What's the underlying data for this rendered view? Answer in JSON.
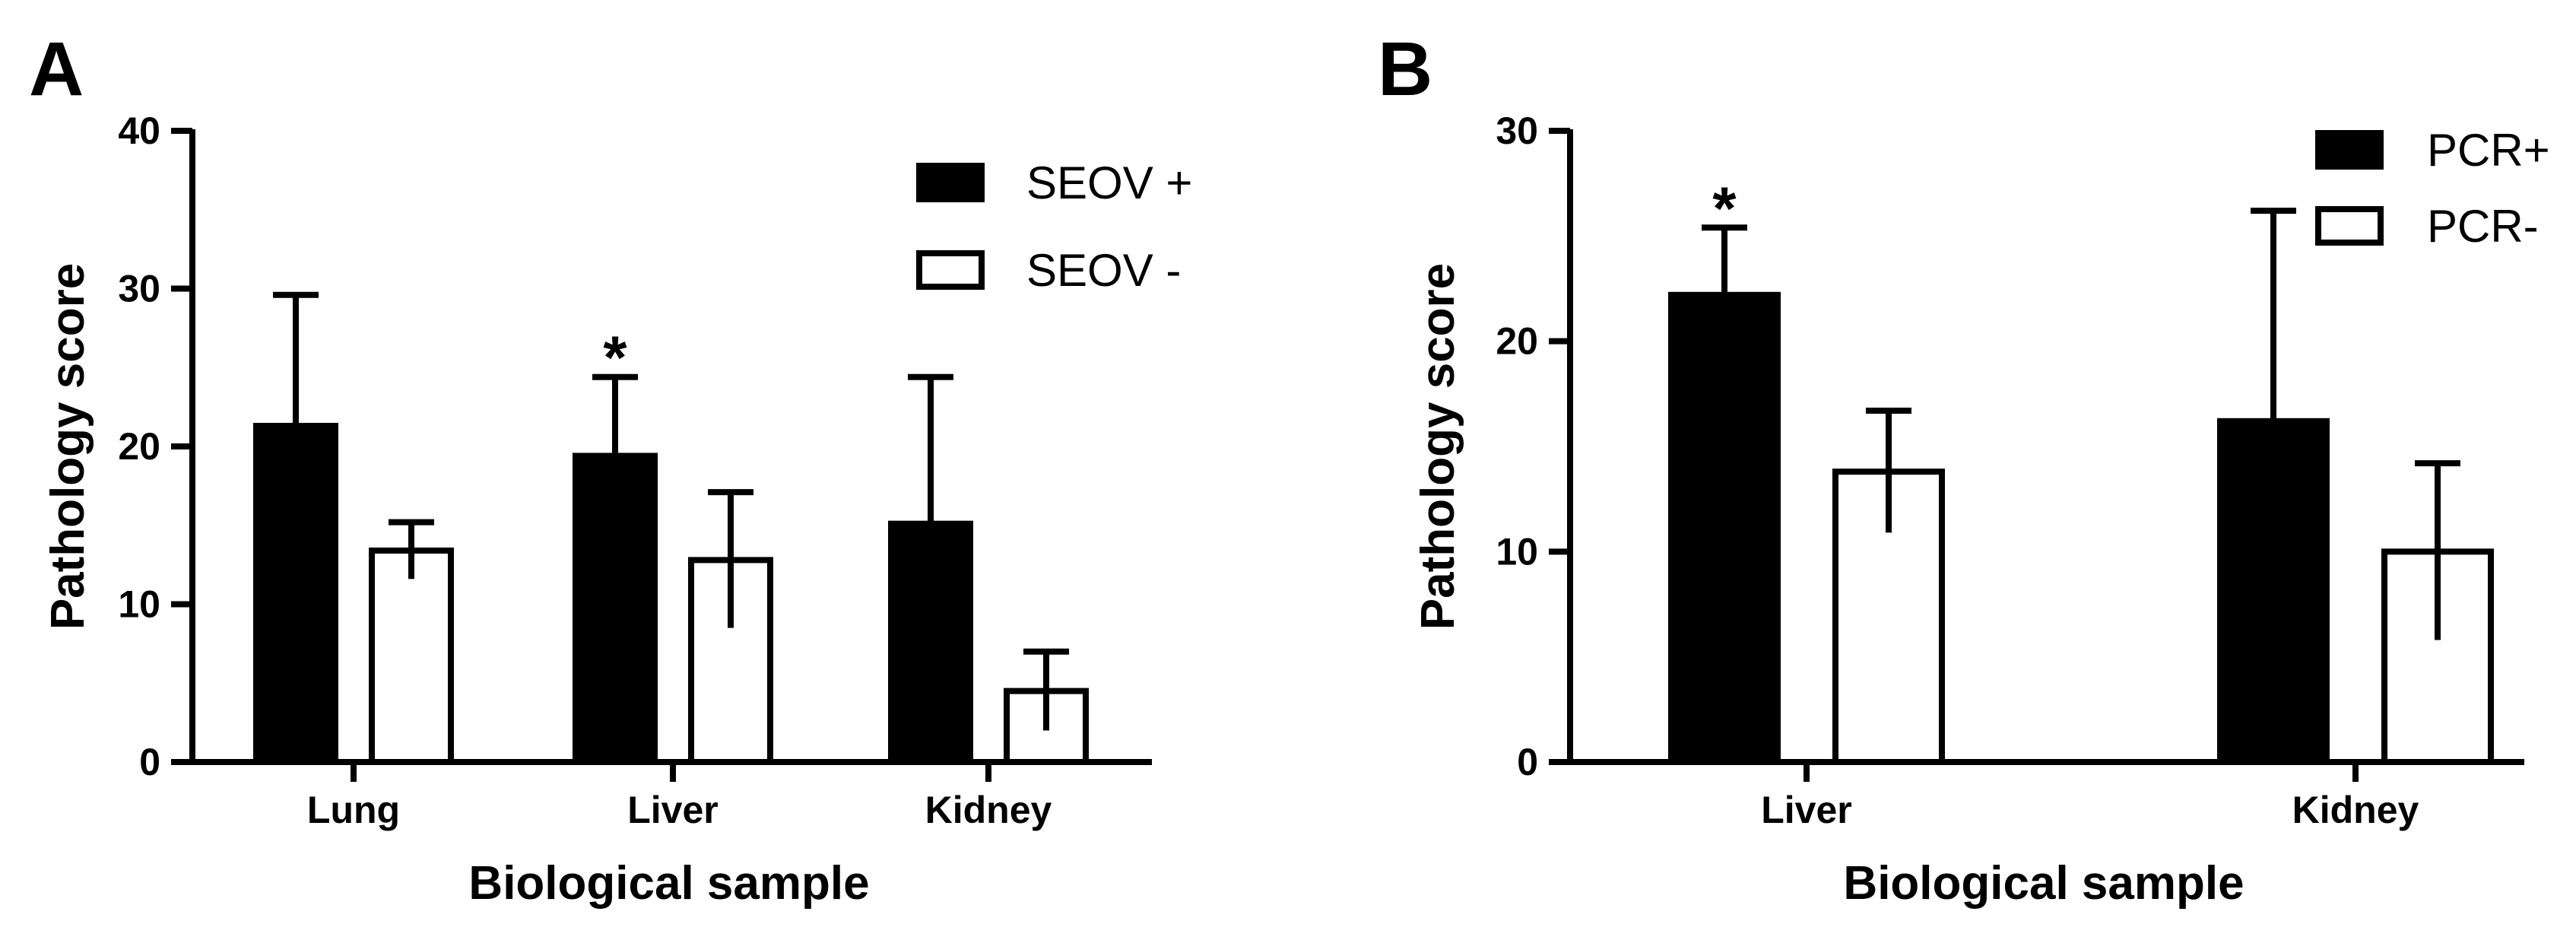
{
  "chart_data": [
    {
      "panel": "A",
      "type": "bar",
      "xlabel": "Biological sample",
      "ylabel": "Pathology score",
      "ylim": [
        0,
        40
      ],
      "yticks": [
        0,
        10,
        20,
        30,
        40
      ],
      "categories": [
        "Lung",
        "Liver",
        "Kidney"
      ],
      "series": [
        {
          "name": "SEOV +",
          "values": [
            21.3,
            19.4,
            15.1
          ],
          "errors": [
            8.3,
            5.0,
            9.3
          ],
          "fill": "#000000"
        },
        {
          "name": "SEOV -",
          "values": [
            13.4,
            12.8,
            4.5
          ],
          "errors": [
            1.8,
            4.3,
            2.5
          ],
          "fill": "#ffffff"
        }
      ],
      "annotations": [
        {
          "text": "*",
          "category": "Liver",
          "series": 0
        }
      ],
      "legend": "top-right",
      "grid": false
    },
    {
      "panel": "B",
      "type": "bar",
      "xlabel": "Biological sample",
      "ylabel": "Pathology score",
      "ylim": [
        0,
        30
      ],
      "yticks": [
        0,
        10,
        20,
        30
      ],
      "categories": [
        "Liver",
        "Kidney"
      ],
      "series": [
        {
          "name": "PCR+",
          "values": [
            22.2,
            16.2
          ],
          "errors": [
            3.2,
            10.0
          ],
          "fill": "#000000"
        },
        {
          "name": "PCR-",
          "values": [
            13.8,
            10.0
          ],
          "errors": [
            2.9,
            4.2
          ],
          "fill": "#ffffff"
        }
      ],
      "annotations": [
        {
          "text": "*",
          "category": "Liver",
          "series": 0
        }
      ],
      "legend": "top-right",
      "grid": false
    }
  ]
}
